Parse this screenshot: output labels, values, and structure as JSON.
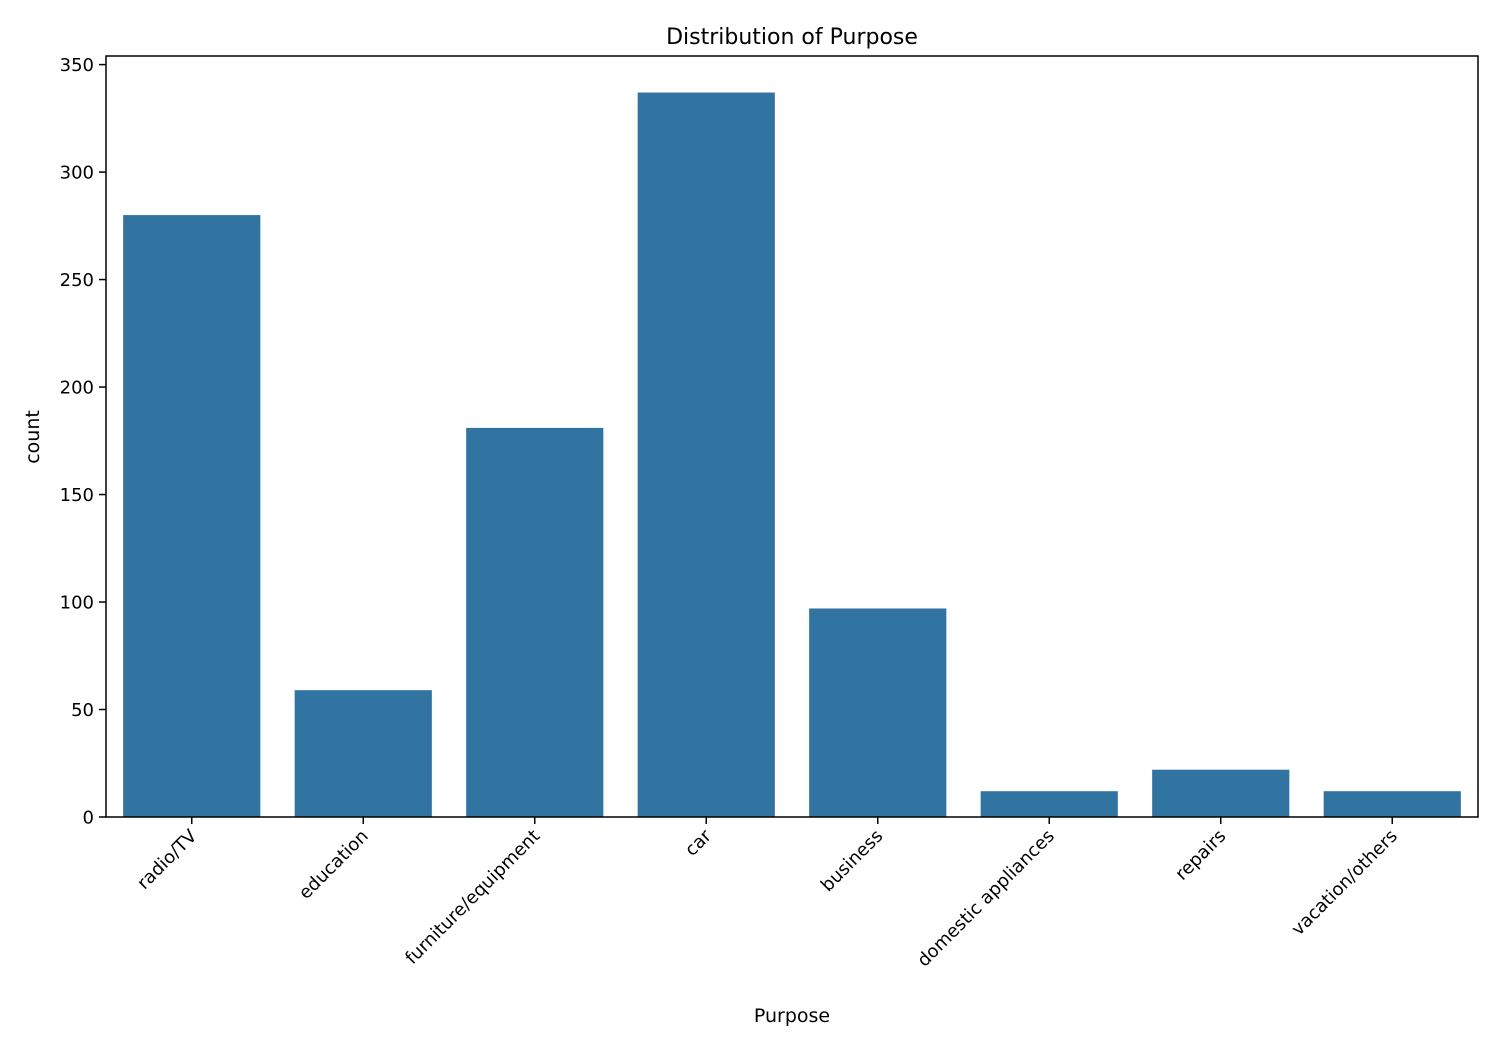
{
  "chart_data": {
    "type": "bar",
    "title": "Distribution of Purpose",
    "xlabel": "Purpose",
    "ylabel": "count",
    "categories": [
      "radio/TV",
      "education",
      "furniture/equipment",
      "car",
      "business",
      "domestic appliances",
      "repairs",
      "vacation/others"
    ],
    "values": [
      280,
      59,
      181,
      337,
      97,
      12,
      22,
      12
    ],
    "ylim": [
      0,
      354
    ],
    "yticks": [
      0,
      50,
      100,
      150,
      200,
      250,
      300,
      350
    ],
    "grid": false,
    "legend": "none",
    "bar_color": "#3274a1"
  }
}
